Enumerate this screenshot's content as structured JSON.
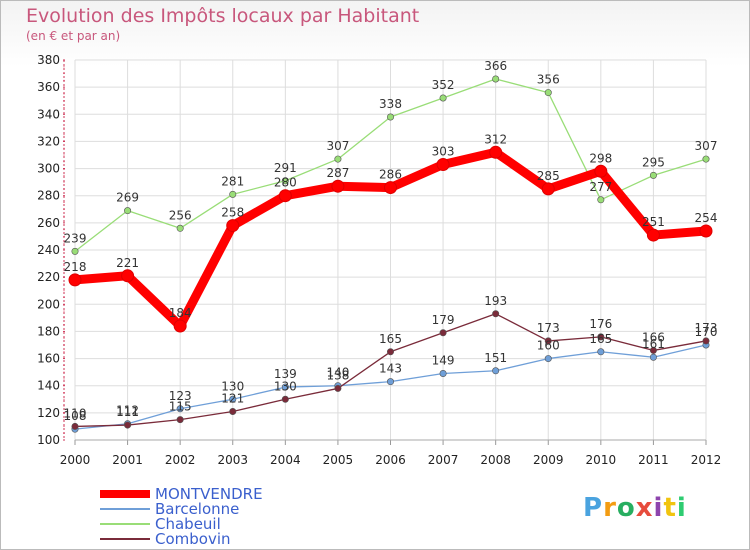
{
  "chart_data": {
    "type": "line",
    "title": "Evolution des Impôts locaux par Habitant",
    "subtitle": "(en € et par an)",
    "xlabel": "",
    "ylabel": "",
    "categories": [
      "2000",
      "2001",
      "2002",
      "2003",
      "2004",
      "2005",
      "2006",
      "2007",
      "2008",
      "2009",
      "2010",
      "2011",
      "2012"
    ],
    "ylim": [
      100,
      380
    ],
    "yticks": [
      100,
      120,
      140,
      160,
      180,
      200,
      220,
      240,
      260,
      280,
      300,
      320,
      340,
      360,
      380
    ],
    "grid": true,
    "legend_position": "bottom-left",
    "series": [
      {
        "name": "MONTVENDRE",
        "color": "#ff0000",
        "values": [
          218,
          221,
          184,
          258,
          280,
          287,
          286,
          303,
          312,
          285,
          298,
          251,
          254
        ]
      },
      {
        "name": "Barcelonne",
        "color": "#6f9fd8",
        "values": [
          108,
          112,
          123,
          130,
          139,
          140,
          143,
          149,
          151,
          160,
          165,
          161,
          170
        ]
      },
      {
        "name": "Chabeuil",
        "color": "#99dd77",
        "values": [
          239,
          269,
          256,
          281,
          291,
          307,
          338,
          352,
          366,
          356,
          277,
          295,
          307
        ]
      },
      {
        "name": "Combovin",
        "color": "#7a2b3a",
        "values": [
          110,
          111,
          115,
          121,
          130,
          138,
          165,
          179,
          193,
          173,
          176,
          166,
          173
        ]
      }
    ]
  },
  "logo": {
    "text": "Proxiti",
    "letters": [
      "P",
      "r",
      "o",
      "x",
      "i",
      "t",
      "i"
    ],
    "colors": [
      "#4aa3df",
      "#f39c12",
      "#27ae60",
      "#e74c3c",
      "#8e44ad",
      "#f1c40f",
      "#2ecc71"
    ]
  }
}
